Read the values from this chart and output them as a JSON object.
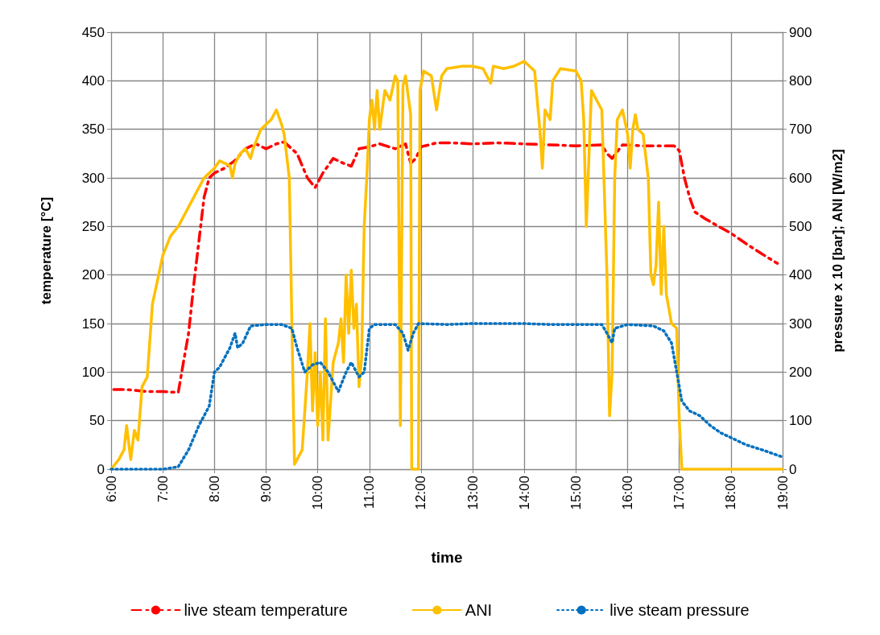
{
  "chart_data": {
    "type": "line",
    "xlabel": "time",
    "ylabel": "temperature [°C]",
    "y2label": "pressure x 10 [bar]; ANI [W/m2]",
    "xlim": [
      6,
      19
    ],
    "xticks": [
      {
        "value": 6,
        "label": "6:00"
      },
      {
        "value": 7,
        "label": "7:00"
      },
      {
        "value": 8,
        "label": "8:00"
      },
      {
        "value": 9,
        "label": "9:00"
      },
      {
        "value": 10,
        "label": "10:00"
      },
      {
        "value": 11,
        "label": "11:00"
      },
      {
        "value": 12,
        "label": "12:00"
      },
      {
        "value": 13,
        "label": "13:00"
      },
      {
        "value": 14,
        "label": "14:00"
      },
      {
        "value": 15,
        "label": "15:00"
      },
      {
        "value": 16,
        "label": "16:00"
      },
      {
        "value": 17,
        "label": "17:00"
      },
      {
        "value": 18,
        "label": "18:00"
      },
      {
        "value": 19,
        "label": "19:00"
      }
    ],
    "ylim": [
      0,
      450
    ],
    "yticks": [
      0,
      50,
      100,
      150,
      200,
      250,
      300,
      350,
      400,
      450
    ],
    "y2lim": [
      0,
      900
    ],
    "y2ticks": [
      0,
      100,
      200,
      300,
      400,
      500,
      600,
      700,
      800,
      900
    ],
    "grid": true,
    "legend": "bottom",
    "marker": "none",
    "series": [
      {
        "name": "live steam temperature",
        "color": "#ff0000",
        "line_style": "dashed",
        "x": [
          6.05,
          6.3,
          6.5,
          6.7,
          7.0,
          7.3,
          7.4,
          7.5,
          7.6,
          7.7,
          7.8,
          7.9,
          8.0,
          8.2,
          8.4,
          8.6,
          8.8,
          9.0,
          9.2,
          9.35,
          9.6,
          9.8,
          9.95,
          10.1,
          10.3,
          10.5,
          10.65,
          10.8,
          11.0,
          11.2,
          11.5,
          11.7,
          11.8,
          11.9,
          12.0,
          12.3,
          12.6,
          13.0,
          13.5,
          14.0,
          14.5,
          15.0,
          15.5,
          15.6,
          15.7,
          15.9,
          16.3,
          16.6,
          16.9,
          17.0,
          17.1,
          17.2,
          17.3,
          17.5,
          17.66,
          18.0,
          18.3,
          18.68,
          18.9
        ],
        "values": [
          82,
          82,
          81,
          80,
          80,
          79,
          110,
          140,
          190,
          235,
          280,
          300,
          305,
          310,
          318,
          330,
          335,
          330,
          335,
          337,
          325,
          300,
          290,
          305,
          320,
          315,
          312,
          330,
          332,
          335,
          330,
          335,
          315,
          320,
          332,
          336,
          336,
          335,
          336,
          335,
          334,
          333,
          334,
          325,
          320,
          334,
          333,
          333,
          333,
          328,
          300,
          280,
          265,
          258,
          253,
          243,
          232,
          219,
          212
        ]
      },
      {
        "name": "ANI",
        "color": "#ffc000",
        "line_style": "solid",
        "axis": "y2",
        "x": [
          6.0,
          6.15,
          6.25,
          6.3,
          6.38,
          6.45,
          6.52,
          6.6,
          6.7,
          6.8,
          7.0,
          7.15,
          7.3,
          7.45,
          7.6,
          7.8,
          8.0,
          8.1,
          8.3,
          8.35,
          8.4,
          8.5,
          8.6,
          8.7,
          8.75,
          8.9,
          9.1,
          9.2,
          9.3,
          9.35,
          9.45,
          9.5,
          9.55,
          9.6,
          9.7,
          9.8,
          9.85,
          9.9,
          9.95,
          10.0,
          10.05,
          10.1,
          10.15,
          10.2,
          10.3,
          10.4,
          10.45,
          10.5,
          10.55,
          10.6,
          10.65,
          10.7,
          10.75,
          10.8,
          10.85,
          10.9,
          10.95,
          11.0,
          11.05,
          11.1,
          11.15,
          11.2,
          11.3,
          11.4,
          11.5,
          11.55,
          11.6,
          11.65,
          11.7,
          11.8,
          11.82,
          11.95,
          11.98,
          12.05,
          12.2,
          12.3,
          12.4,
          12.5,
          12.8,
          13.0,
          13.2,
          13.35,
          13.4,
          13.6,
          13.8,
          14.0,
          14.2,
          14.3,
          14.35,
          14.4,
          14.5,
          14.55,
          14.7,
          15.0,
          15.1,
          15.15,
          15.2,
          15.3,
          15.4,
          15.5,
          15.6,
          15.65,
          15.7,
          15.75,
          15.8,
          15.9,
          16.0,
          16.05,
          16.1,
          16.15,
          16.2,
          16.3,
          16.4,
          16.45,
          16.5,
          16.55,
          16.6,
          16.65,
          16.7,
          16.75,
          16.85,
          16.95,
          17.0,
          17.05,
          17.5,
          18.0,
          19.0
        ],
        "values": [
          0,
          20,
          40,
          90,
          20,
          80,
          60,
          170,
          190,
          340,
          440,
          480,
          500,
          530,
          560,
          600,
          620,
          635,
          625,
          600,
          630,
          650,
          660,
          640,
          660,
          700,
          720,
          740,
          710,
          690,
          600,
          300,
          10,
          20,
          40,
          200,
          300,
          120,
          240,
          90,
          200,
          60,
          310,
          60,
          220,
          260,
          310,
          220,
          400,
          280,
          410,
          290,
          340,
          170,
          230,
          500,
          600,
          720,
          760,
          700,
          780,
          700,
          780,
          760,
          810,
          800,
          90,
          790,
          810,
          730,
          0,
          0,
          780,
          820,
          810,
          740,
          810,
          825,
          830,
          830,
          825,
          795,
          830,
          825,
          830,
          840,
          820,
          700,
          620,
          740,
          720,
          800,
          825,
          820,
          800,
          720,
          500,
          780,
          760,
          740,
          400,
          110,
          200,
          600,
          720,
          740,
          690,
          620,
          700,
          730,
          700,
          690,
          600,
          400,
          380,
          420,
          550,
          360,
          500,
          360,
          300,
          290,
          100,
          0,
          0,
          0,
          0
        ]
      },
      {
        "name": "live steam pressure",
        "color": "#0070c0",
        "line_style": "dotted",
        "axis": "y2",
        "x": [
          6.0,
          7.0,
          7.3,
          7.5,
          7.7,
          7.9,
          8.0,
          8.1,
          8.2,
          8.3,
          8.4,
          8.45,
          8.55,
          8.7,
          9.0,
          9.3,
          9.5,
          9.6,
          9.75,
          9.9,
          10.05,
          10.2,
          10.4,
          10.55,
          10.65,
          10.8,
          10.9,
          11.0,
          11.1,
          11.5,
          11.65,
          11.75,
          11.85,
          11.95,
          12.5,
          13.0,
          14.0,
          14.5,
          15.0,
          15.5,
          15.6,
          15.7,
          15.75,
          16.0,
          16.5,
          16.7,
          16.85,
          16.95,
          17.05,
          17.2,
          17.4,
          17.6,
          17.8,
          18.0,
          18.3,
          18.6,
          19.0
        ],
        "values": [
          0,
          0,
          5,
          40,
          90,
          130,
          200,
          210,
          230,
          250,
          280,
          250,
          260,
          295,
          298,
          298,
          290,
          250,
          200,
          215,
          220,
          200,
          160,
          200,
          220,
          190,
          200,
          290,
          298,
          298,
          280,
          245,
          280,
          300,
          298,
          300,
          300,
          298,
          298,
          298,
          280,
          260,
          290,
          298,
          295,
          285,
          260,
          200,
          140,
          120,
          110,
          90,
          75,
          65,
          50,
          40,
          25
        ]
      }
    ]
  }
}
